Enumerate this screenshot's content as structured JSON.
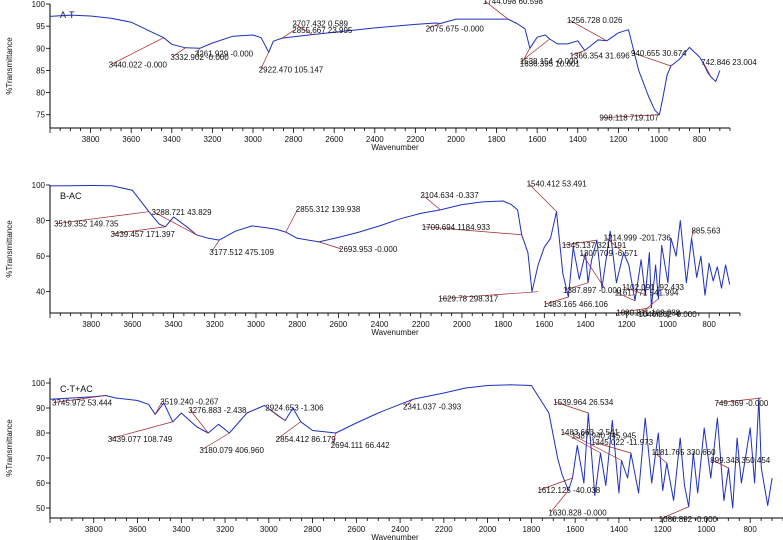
{
  "chart_data": [
    {
      "type": "line",
      "panel_label": "A-T",
      "xlabel": "Wavenumber",
      "ylabel": "%Transmittance",
      "xlim": [
        4000,
        650
      ],
      "ylim": [
        72,
        100
      ],
      "x_ticks": [
        3800,
        3600,
        3400,
        3200,
        3000,
        2800,
        2600,
        2400,
        2200,
        2000,
        1800,
        1600,
        1400,
        1200,
        1000,
        800
      ],
      "y_ticks": [
        75,
        80,
        85,
        90,
        95,
        100
      ],
      "color": "#1f2fbf",
      "series": [
        {
          "x": [
            4000,
            3900,
            3800,
            3700,
            3600,
            3500,
            3440,
            3400,
            3333,
            3262,
            3200,
            3100,
            3000,
            2960,
            2922,
            2900,
            2856,
            2800,
            2708,
            2600,
            2500,
            2400,
            2300,
            2200,
            2100,
            2076,
            2000,
            1900,
            1800,
            1744,
            1700,
            1660,
            1636,
            1600,
            1560,
            1538,
            1500,
            1450,
            1400,
            1366,
            1300,
            1257,
            1200,
            1150,
            1100,
            1050,
            1020,
            998,
            980,
            960,
            941,
            900,
            850,
            800,
            780,
            760,
            743,
            720,
            700
          ],
          "y": [
            97.2,
            97.5,
            97.3,
            96.8,
            95.9,
            93.7,
            92.4,
            90.9,
            90.1,
            90.0,
            91.2,
            92.7,
            93.0,
            92.4,
            89.1,
            91.6,
            92.3,
            92.6,
            93.1,
            93.6,
            94.1,
            94.6,
            95.0,
            95.4,
            95.7,
            95.6,
            96.6,
            96.6,
            96.6,
            96.6,
            95.6,
            94.4,
            90.0,
            92.5,
            93.0,
            92.1,
            91.0,
            91.0,
            91.7,
            89.5,
            91.9,
            91.7,
            93.5,
            94.2,
            85.0,
            79.0,
            76.0,
            75.0,
            79.0,
            84.0,
            86.0,
            87.5,
            90.2,
            88.0,
            86.5,
            84.5,
            83.5,
            82.5,
            85.0
          ]
        }
      ],
      "annotations": [
        {
          "x": 3440.022,
          "y": 92.4,
          "label": "3440.022  -0.000"
        },
        {
          "x": 3332.902,
          "y": 90.1,
          "label": "3332.902  -0.000"
        },
        {
          "x": 3261.929,
          "y": 90.0,
          "label": "3261.929  -0.000"
        },
        {
          "x": 2922.47,
          "y": 89.1,
          "label": "2922.470  105.147"
        },
        {
          "x": 2855.667,
          "y": 92.3,
          "label": "2855.667  23.995"
        },
        {
          "x": 2707.432,
          "y": 93.1,
          "label": "2707.432  0.589"
        },
        {
          "x": 2075.675,
          "y": 95.6,
          "label": "2075.675  -0.000"
        },
        {
          "x": 1744.098,
          "y": 96.6,
          "label": "1744.098  60.598"
        },
        {
          "x": 1636.395,
          "y": 90.0,
          "label": "1636.395  10.601"
        },
        {
          "x": 1538.154,
          "y": 92.1,
          "label": "1538.154  -0.000"
        },
        {
          "x": 1366.354,
          "y": 89.5,
          "label": "1366.354  31.696"
        },
        {
          "x": 1256.728,
          "y": 91.7,
          "label": "1256.728  0.026"
        },
        {
          "x": 998.118,
          "y": 75.0,
          "label": "998.118  719.107"
        },
        {
          "x": 940.655,
          "y": 86.0,
          "label": "940.655  30.674"
        },
        {
          "x": 742.846,
          "y": 83.5,
          "label": "742.846  23.004"
        }
      ]
    },
    {
      "type": "line",
      "panel_label": "B-AC",
      "xlabel": "Wavenumber",
      "ylabel": "%Transmittance",
      "xlim": [
        4000,
        650
      ],
      "ylim": [
        28,
        100
      ],
      "x_ticks": [
        3800,
        3600,
        3400,
        3200,
        3000,
        2800,
        2600,
        2400,
        2200,
        2000,
        1800,
        1600,
        1400,
        1200,
        1000,
        800
      ],
      "y_ticks": [
        40,
        60,
        80,
        100
      ],
      "color": "#1f2fbf",
      "series": [
        {
          "x": [
            4000,
            3900,
            3800,
            3700,
            3600,
            3520,
            3470,
            3440,
            3400,
            3330,
            3289,
            3230,
            3178,
            3100,
            3020,
            2950,
            2900,
            2855,
            2800,
            2694,
            2600,
            2500,
            2400,
            2300,
            2200,
            2105,
            2000,
            1900,
            1800,
            1760,
            1730,
            1710,
            1680,
            1660,
            1630,
            1600,
            1570,
            1541,
            1510,
            1483,
            1460,
            1430,
            1400,
            1388,
            1370,
            1345,
            1320,
            1308,
            1280,
            1250,
            1215,
            1190,
            1160,
            1130,
            1110,
            1090,
            1080,
            1060,
            1046,
            1030,
            1000,
            985,
            960,
            940,
            910,
            885,
            860,
            840,
            820,
            800,
            780,
            760,
            740,
            720,
            700
          ],
          "y": [
            99.5,
            99.6,
            99.7,
            99.6,
            97.0,
            85.0,
            78.0,
            76.5,
            82.0,
            76.0,
            72.0,
            70.0,
            69.0,
            74.0,
            77.0,
            76.0,
            75.0,
            73.5,
            70.0,
            68.0,
            70.5,
            73.5,
            77.0,
            81.0,
            84.0,
            86.0,
            89.0,
            90.5,
            91.0,
            89.0,
            86.0,
            72.0,
            62.0,
            40.0,
            55.0,
            65.0,
            70.0,
            85.0,
            50.0,
            37.0,
            65.0,
            47.0,
            62.0,
            45.0,
            58.0,
            69.0,
            42.0,
            52.0,
            74.0,
            45.0,
            62.0,
            55.0,
            35.0,
            58.0,
            38.0,
            62.0,
            31.0,
            55.0,
            36.0,
            66.0,
            45.0,
            70.0,
            60.0,
            80.0,
            45.0,
            70.0,
            48.0,
            60.0,
            38.0,
            56.0,
            46.0,
            54.0,
            42.0,
            55.0,
            44.0
          ]
        }
      ],
      "annotations": [
        {
          "x": 3519.352,
          "y": 85.0,
          "label": "3519.352  149.735"
        },
        {
          "x": 3439.457,
          "y": 76.5,
          "label": "3439.457  171.397"
        },
        {
          "x": 3288.721,
          "y": 72.0,
          "label": "3288.721  43.829"
        },
        {
          "x": 3177.512,
          "y": 69.0,
          "label": "3177.512  475.109"
        },
        {
          "x": 2855.312,
          "y": 73.5,
          "label": "2855.312  139.938"
        },
        {
          "x": 2693.953,
          "y": 68.0,
          "label": "2693.953  -0.000"
        },
        {
          "x": 2104.634,
          "y": 86.0,
          "label": "2104.634  -0.337"
        },
        {
          "x": 1709.694,
          "y": 72.0,
          "label": "1709.694  1184.933"
        },
        {
          "x": 1629.78,
          "y": 40.0,
          "label": "1629.78  298.317"
        },
        {
          "x": 1540.412,
          "y": 85.0,
          "label": "1540.412  53.491"
        },
        {
          "x": 1483.165,
          "y": 37.0,
          "label": "1483.165  466.106"
        },
        {
          "x": 1387.897,
          "y": 45.0,
          "label": "1387.897  -0.000"
        },
        {
          "x": 1345.137,
          "y": 69.0,
          "label": "1345.137  321.191"
        },
        {
          "x": 1307.709,
          "y": 42.0,
          "label": "1307.709  -6.571"
        },
        {
          "x": 1214.999,
          "y": 62.0,
          "label": "1214.999  -201.736"
        },
        {
          "x": 1161.771,
          "y": 35.0,
          "label": "1161.771  541.994"
        },
        {
          "x": 1102.091,
          "y": 38.0,
          "label": "1102.091  -92.433"
        },
        {
          "x": 1080.811,
          "y": 31.0,
          "label": "1080.811  163.988"
        },
        {
          "x": 1046.262,
          "y": 36.0,
          "label": "1046.262  -0.000"
        },
        {
          "x": 885.5,
          "y": 70.0,
          "label": "885.563"
        }
      ]
    },
    {
      "type": "line",
      "panel_label": "C-T+AC",
      "xlabel": "Wavenumber",
      "ylabel": "%Transmittance",
      "xlim": [
        4000,
        650
      ],
      "ylim": [
        46,
        102
      ],
      "x_ticks": [
        3800,
        3600,
        3400,
        3200,
        3000,
        2800,
        2600,
        2400,
        2200,
        2000,
        1800,
        1600,
        1400,
        1200,
        1000,
        800
      ],
      "y_ticks": [
        50,
        60,
        70,
        80,
        90,
        100
      ],
      "color": "#1f2fbf",
      "series": [
        {
          "x": [
            4000,
            3900,
            3800,
            3746,
            3700,
            3600,
            3550,
            3519,
            3480,
            3439,
            3400,
            3330,
            3277,
            3230,
            3180,
            3100,
            3020,
            2960,
            2925,
            2890,
            2854,
            2800,
            2694,
            2600,
            2500,
            2400,
            2341,
            2200,
            2100,
            2000,
            1900,
            1800,
            1720,
            1680,
            1660,
            1631,
            1612,
            1590,
            1560,
            1540,
            1510,
            1484,
            1460,
            1430,
            1400,
            1388,
            1360,
            1345,
            1310,
            1280,
            1250,
            1220,
            1200,
            1181,
            1150,
            1120,
            1100,
            1081,
            1060,
            1040,
            1010,
            980,
            950,
            920,
            899,
            880,
            860,
            840,
            800,
            780,
            760,
            749,
            720,
            700
          ],
          "y": [
            93.5,
            94.0,
            94.5,
            95.0,
            94.0,
            93.0,
            91.5,
            87.5,
            92.0,
            84.5,
            88.0,
            82.5,
            80.0,
            83.5,
            80.0,
            88.0,
            91.0,
            87.0,
            85.0,
            90.0,
            84.5,
            81.0,
            80.0,
            84.0,
            88.0,
            91.5,
            93.5,
            96.0,
            98.0,
            99.0,
            99.3,
            99.0,
            88.0,
            70.0,
            63.5,
            57.0,
            62.0,
            75.0,
            60.0,
            88.0,
            55.0,
            72.0,
            59.0,
            85.0,
            56.0,
            69.0,
            62.0,
            72.0,
            56.0,
            86.0,
            60.0,
            80.0,
            57.0,
            68.0,
            53.0,
            78.0,
            59.0,
            50.5,
            72.0,
            56.0,
            82.0,
            62.0,
            86.0,
            53.0,
            66.0,
            50.0,
            78.0,
            60.0,
            82.0,
            60.0,
            94.0,
            66.0,
            51.0,
            62.0
          ]
        }
      ],
      "annotations": [
        {
          "x": 3745.972,
          "y": 95.0,
          "label": "3745.972  53.444"
        },
        {
          "x": 3519.24,
          "y": 87.5,
          "label": "3519.240  -0.267"
        },
        {
          "x": 3439.077,
          "y": 84.5,
          "label": "3439.077  108.749"
        },
        {
          "x": 3276.883,
          "y": 80.0,
          "label": "3276.883  -2.438"
        },
        {
          "x": 3180.079,
          "y": 80.0,
          "label": "3180.079  406.960"
        },
        {
          "x": 2924.653,
          "y": 85.0,
          "label": "2924.653  -1.306"
        },
        {
          "x": 2854.412,
          "y": 84.5,
          "label": "2854.412  86.179"
        },
        {
          "x": 2694.111,
          "y": 80.0,
          "label": "2694.111  66.442"
        },
        {
          "x": 2341.037,
          "y": 93.5,
          "label": "2341.037  -0.393"
        },
        {
          "x": 1612.125,
          "y": 62.0,
          "label": "1612.125  -40.038"
        },
        {
          "x": 1630.828,
          "y": 57.0,
          "label": "1630.828  -0.000"
        },
        {
          "x": 1539.964,
          "y": 88.0,
          "label": "1539.964  26.534"
        },
        {
          "x": 1483.663,
          "y": 72.0,
          "label": "1483.663  -2.541"
        },
        {
          "x": 1387.94,
          "y": 69.0,
          "label": "1387.940  245.945"
        },
        {
          "x": 1345.022,
          "y": 72.0,
          "label": "1345.022  -11.973"
        },
        {
          "x": 1181.765,
          "y": 68.0,
          "label": "1181.765  330.660"
        },
        {
          "x": 1080.892,
          "y": 50.5,
          "label": "1080.892  -0.000"
        },
        {
          "x": 899.343,
          "y": 66.0,
          "label": "899.343  350.454"
        },
        {
          "x": 749.369,
          "y": 94.0,
          "label": "749.369  -0.000"
        }
      ]
    }
  ]
}
